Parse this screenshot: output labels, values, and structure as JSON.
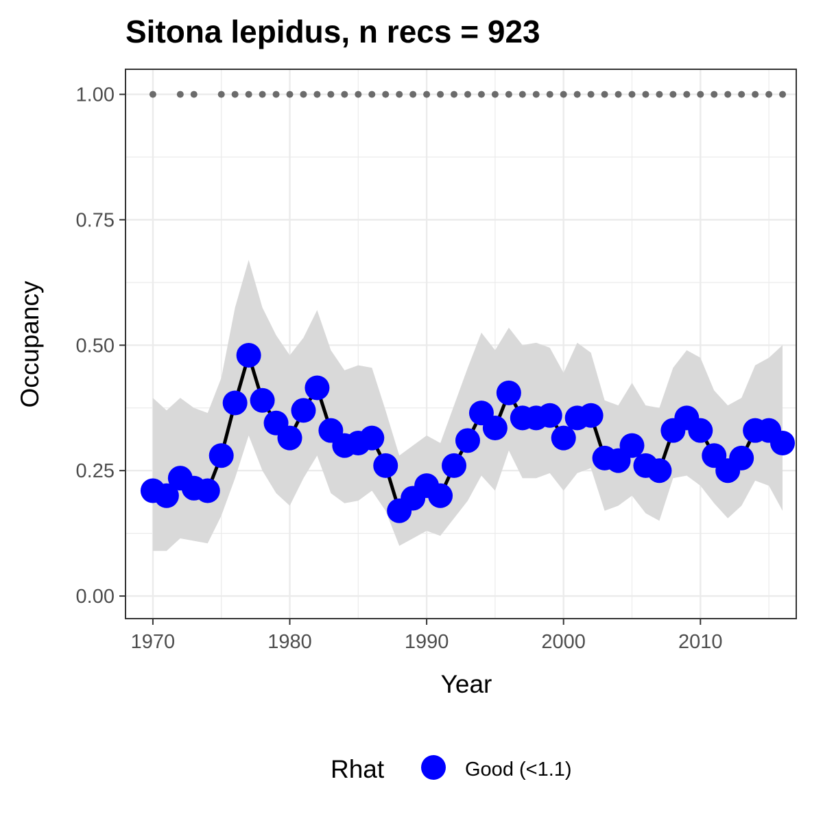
{
  "chart_data": {
    "type": "line",
    "title": "Sitona lepidus, n recs = 923",
    "xlabel": "Year",
    "ylabel": "Occupancy",
    "xlim": [
      1968,
      2017
    ],
    "ylim": [
      -0.045,
      1.05
    ],
    "x_ticks": [
      1970,
      1980,
      1990,
      2000,
      2010
    ],
    "x_tick_labels": [
      "1970",
      "1980",
      "1990",
      "2000",
      "2010"
    ],
    "y_ticks": [
      0,
      0.25,
      0.5,
      0.75,
      1.0
    ],
    "y_tick_labels": [
      "0.00",
      "0.25",
      "0.50",
      "0.75",
      "1.00"
    ],
    "grid": true,
    "legend_position": "bottom",
    "legend": {
      "title": "Rhat",
      "entries": [
        {
          "label": "Good (<1.1)",
          "color": "#0000ff"
        }
      ]
    },
    "colors": {
      "points": "#0000ff",
      "line": "#000000",
      "ribbon": "#d9d9d9",
      "record_dots": "#6b6b6b"
    },
    "x": [
      1970,
      1971,
      1972,
      1973,
      1974,
      1975,
      1976,
      1977,
      1978,
      1979,
      1980,
      1981,
      1982,
      1983,
      1984,
      1985,
      1986,
      1987,
      1988,
      1989,
      1990,
      1991,
      1992,
      1993,
      1994,
      1995,
      1996,
      1997,
      1998,
      1999,
      2000,
      2001,
      2002,
      2003,
      2004,
      2005,
      2006,
      2007,
      2008,
      2009,
      2010,
      2011,
      2012,
      2013,
      2014,
      2015,
      2016
    ],
    "series": [
      {
        "values": [
          0.21,
          0.2,
          0.235,
          0.215,
          0.21,
          0.28,
          0.385,
          0.48,
          0.39,
          0.345,
          0.315,
          0.37,
          0.415,
          0.33,
          0.3,
          0.305,
          0.315,
          0.26,
          0.17,
          0.195,
          0.22,
          0.2,
          0.26,
          0.31,
          0.365,
          0.335,
          0.405,
          0.355,
          0.355,
          0.36,
          0.315,
          0.355,
          0.36,
          0.275,
          0.27,
          0.3,
          0.26,
          0.25,
          0.33,
          0.355,
          0.33,
          0.28,
          0.25,
          0.275,
          0.33,
          0.33,
          0.305
        ],
        "lower": [
          0.09,
          0.09,
          0.115,
          0.11,
          0.105,
          0.16,
          0.235,
          0.32,
          0.25,
          0.205,
          0.18,
          0.235,
          0.28,
          0.205,
          0.185,
          0.19,
          0.21,
          0.17,
          0.1,
          0.115,
          0.13,
          0.12,
          0.155,
          0.19,
          0.24,
          0.21,
          0.29,
          0.235,
          0.235,
          0.245,
          0.21,
          0.245,
          0.255,
          0.17,
          0.18,
          0.2,
          0.165,
          0.15,
          0.235,
          0.24,
          0.22,
          0.185,
          0.155,
          0.18,
          0.23,
          0.22,
          0.17
        ],
        "upper": [
          0.395,
          0.37,
          0.395,
          0.375,
          0.365,
          0.435,
          0.575,
          0.67,
          0.575,
          0.52,
          0.48,
          0.515,
          0.57,
          0.49,
          0.45,
          0.46,
          0.455,
          0.37,
          0.28,
          0.3,
          0.32,
          0.305,
          0.38,
          0.455,
          0.525,
          0.49,
          0.535,
          0.5,
          0.505,
          0.495,
          0.445,
          0.505,
          0.485,
          0.39,
          0.38,
          0.425,
          0.38,
          0.375,
          0.455,
          0.49,
          0.475,
          0.41,
          0.38,
          0.395,
          0.46,
          0.475,
          0.5
        ]
      }
    ],
    "record_years": [
      1970,
      1972,
      1973,
      1975,
      1976,
      1977,
      1978,
      1979,
      1980,
      1981,
      1982,
      1983,
      1984,
      1985,
      1986,
      1987,
      1988,
      1989,
      1990,
      1991,
      1992,
      1993,
      1994,
      1995,
      1996,
      1997,
      1998,
      1999,
      2000,
      2001,
      2002,
      2003,
      2004,
      2005,
      2006,
      2007,
      2008,
      2009,
      2010,
      2011,
      2012,
      2013,
      2014,
      2015,
      2016
    ],
    "record_level": 1.0
  }
}
